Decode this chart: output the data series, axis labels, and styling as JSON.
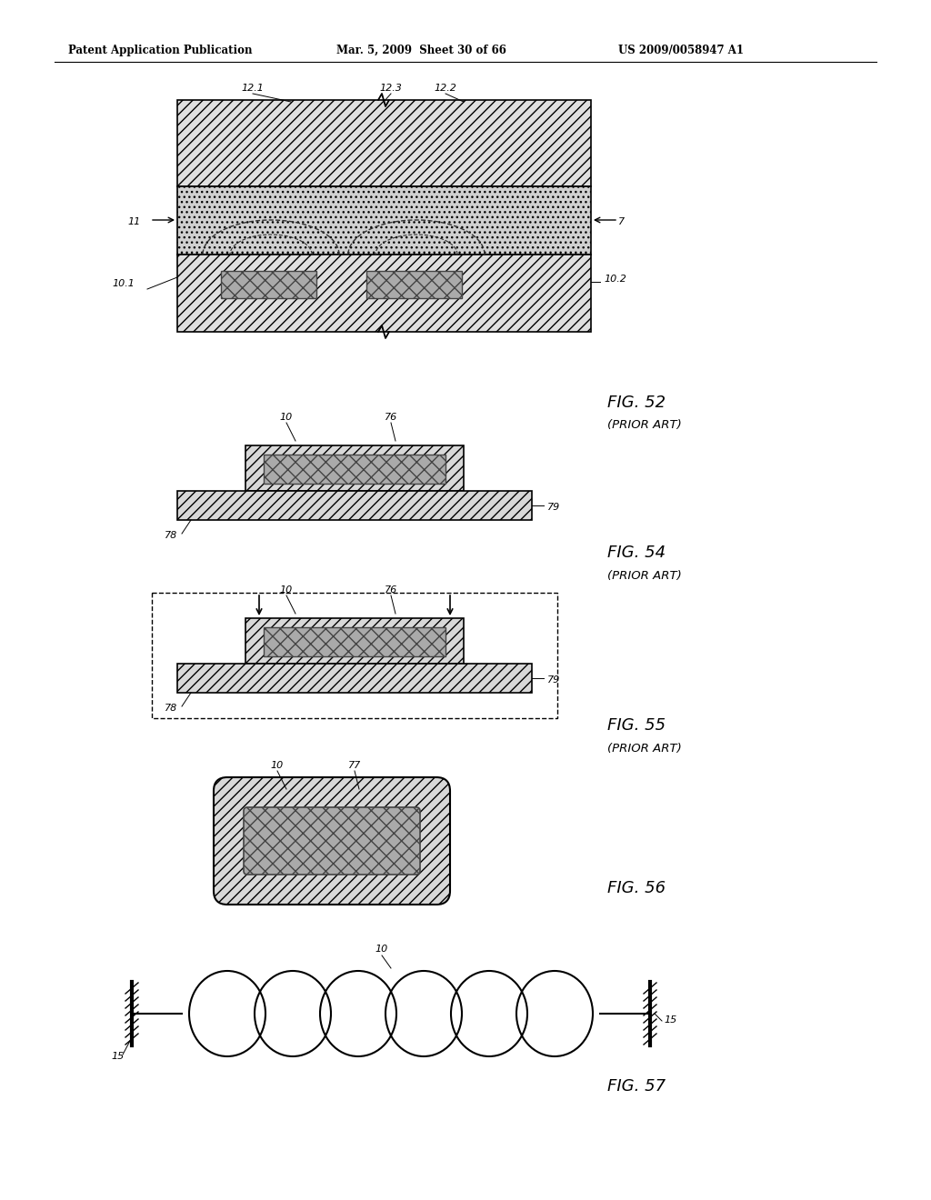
{
  "header_left": "Patent Application Publication",
  "header_mid": "Mar. 5, 2009  Sheet 30 of 66",
  "header_right": "US 2009/0058947 A1",
  "background": "#ffffff",
  "fig52_label": "FIG. 52",
  "fig52_sub": "(PRIOR ART)",
  "fig54_label": "FIG. 54",
  "fig54_sub": "(PRIOR ART)",
  "fig55_label": "FIG. 55",
  "fig55_sub": "(PRIOR ART)",
  "fig56_label": "FIG. 56",
  "fig57_label": "FIG. 57"
}
